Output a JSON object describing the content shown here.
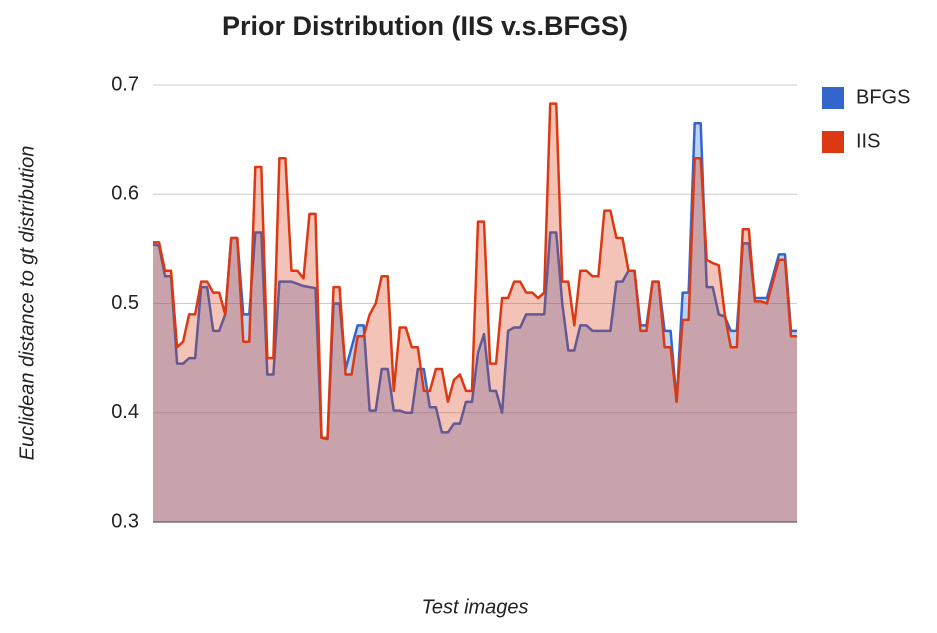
{
  "chart_data": {
    "type": "area",
    "title": "Prior Distribution (IIS v.s.BFGS)",
    "x_label": "Test images",
    "y_label": "Euclidean distance to gt distribution",
    "categories": [
      null,
      null,
      null,
      null,
      null,
      null,
      null,
      null,
      null,
      null,
      null,
      null,
      null,
      null,
      null,
      null,
      null,
      null,
      null,
      null,
      null,
      null,
      null,
      null,
      null,
      null,
      null,
      null,
      null,
      null,
      null,
      null,
      null,
      null,
      null,
      null,
      null,
      null,
      null,
      null,
      null,
      null,
      null,
      null,
      null,
      null,
      null,
      null,
      null,
      null,
      null,
      null,
      null,
      null,
      null,
      null,
      null,
      null,
      null,
      null,
      null,
      null,
      null,
      null,
      null,
      null,
      null,
      null,
      null,
      null,
      null,
      null,
      null,
      null,
      null,
      null,
      null,
      null,
      null,
      null,
      null,
      null,
      null,
      null,
      null,
      null,
      null,
      null,
      null,
      null,
      null,
      null,
      null,
      null,
      null,
      null,
      null,
      null,
      null,
      null,
      null,
      null,
      null,
      null,
      null,
      null,
      null,
      null
    ],
    "series": [
      {
        "name": "BFGS",
        "color": "#3366cc",
        "values": [
          0.554,
          0.553,
          0.525,
          0.525,
          0.445,
          0.445,
          0.45,
          0.45,
          0.515,
          0.515,
          0.475,
          0.475,
          0.49,
          0.56,
          0.56,
          0.49,
          0.49,
          0.565,
          0.565,
          0.435,
          0.435,
          0.52,
          0.52,
          0.52,
          0.518,
          0.516,
          0.515,
          0.514,
          0.377,
          0.376,
          0.5,
          0.5,
          0.44,
          0.46,
          0.48,
          0.48,
          0.402,
          0.402,
          0.44,
          0.44,
          0.402,
          0.402,
          0.4,
          0.4,
          0.44,
          0.44,
          0.405,
          0.405,
          0.382,
          0.382,
          0.39,
          0.39,
          0.41,
          0.41,
          0.455,
          0.472,
          0.42,
          0.42,
          0.4,
          0.475,
          0.478,
          0.478,
          0.49,
          0.49,
          0.49,
          0.49,
          0.565,
          0.565,
          0.5,
          0.457,
          0.457,
          0.48,
          0.48,
          0.475,
          0.475,
          0.475,
          0.475,
          0.52,
          0.52,
          0.53,
          0.53,
          0.48,
          0.48,
          0.52,
          0.52,
          0.475,
          0.475,
          0.41,
          0.51,
          0.51,
          0.665,
          0.665,
          0.515,
          0.515,
          0.49,
          0.488,
          0.475,
          0.475,
          0.555,
          0.555,
          0.505,
          0.505,
          0.505,
          0.525,
          0.545,
          0.545,
          0.475,
          0.475
        ]
      },
      {
        "name": "IIS",
        "color": "#dc3912",
        "values": [
          0.556,
          0.556,
          0.53,
          0.53,
          0.46,
          0.465,
          0.49,
          0.49,
          0.52,
          0.52,
          0.51,
          0.51,
          0.49,
          0.56,
          0.56,
          0.465,
          0.465,
          0.625,
          0.625,
          0.45,
          0.45,
          0.633,
          0.633,
          0.53,
          0.53,
          0.523,
          0.582,
          0.582,
          0.377,
          0.377,
          0.515,
          0.515,
          0.435,
          0.435,
          0.47,
          0.47,
          0.49,
          0.5,
          0.525,
          0.525,
          0.42,
          0.478,
          0.478,
          0.46,
          0.46,
          0.42,
          0.42,
          0.44,
          0.44,
          0.41,
          0.43,
          0.435,
          0.42,
          0.42,
          0.575,
          0.575,
          0.445,
          0.445,
          0.505,
          0.505,
          0.52,
          0.52,
          0.51,
          0.51,
          0.505,
          0.51,
          0.683,
          0.683,
          0.52,
          0.52,
          0.48,
          0.53,
          0.53,
          0.525,
          0.525,
          0.585,
          0.585,
          0.56,
          0.56,
          0.53,
          0.53,
          0.475,
          0.475,
          0.52,
          0.52,
          0.46,
          0.46,
          0.41,
          0.485,
          0.485,
          0.633,
          0.633,
          0.54,
          0.537,
          0.535,
          0.49,
          0.46,
          0.46,
          0.568,
          0.568,
          0.502,
          0.502,
          0.5,
          0.52,
          0.54,
          0.54,
          0.47,
          0.47
        ]
      }
    ],
    "ylim": [
      0.3,
      0.7
    ],
    "yticks": [
      0.3,
      0.4,
      0.5,
      0.6,
      0.7
    ],
    "grid": true,
    "legend": "right"
  }
}
